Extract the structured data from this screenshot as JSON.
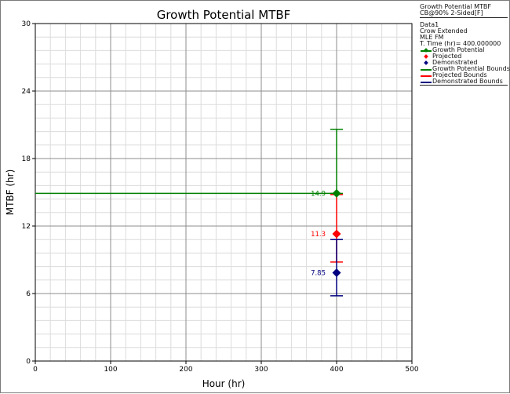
{
  "chart_data": {
    "type": "scatter",
    "title": "Growth Potential MTBF",
    "xlabel": "Hour (hr)",
    "ylabel": "MTBF (hr)",
    "xlim": [
      0,
      500
    ],
    "ylim": [
      0,
      30
    ],
    "x_ticks": [
      0,
      100,
      200,
      300,
      400,
      500
    ],
    "y_ticks": [
      0,
      6,
      12,
      18,
      24,
      30
    ],
    "grid": true,
    "legend_position": "right",
    "series": [
      {
        "name": "Growth Potential",
        "color": "#008000",
        "x": 400,
        "y": 14.9,
        "label": "14.9",
        "line_from_x": 0,
        "bounds": [
          14.9,
          20.6
        ]
      },
      {
        "name": "Projected",
        "color": "#ff0000",
        "x": 400,
        "y": 11.3,
        "label": "11.3",
        "bounds": [
          8.8,
          14.8
        ]
      },
      {
        "name": "Demonstrated",
        "color": "#000080",
        "x": 400,
        "y": 7.85,
        "label": "7.85",
        "bounds": [
          5.8,
          10.8
        ]
      }
    ]
  },
  "legend": {
    "header_title": "Growth Potential MTBF",
    "header_cb": "CB@90% 2-Sided[F]",
    "data_name": "Data1",
    "model": "Crow Extended",
    "method": "MLE FM",
    "time": "T. Time (hr)= 400.000000",
    "items": [
      {
        "label": "Growth Potential",
        "color": "#008000",
        "style": "line-diamond"
      },
      {
        "label": "Projected",
        "color": "#ff0000",
        "style": "diamond"
      },
      {
        "label": "Demonstrated",
        "color": "#000080",
        "style": "diamond"
      },
      {
        "label": "Growth Potential Bounds",
        "color": "#008000",
        "style": "line"
      },
      {
        "label": "Projected Bounds",
        "color": "#ff0000",
        "style": "line"
      },
      {
        "label": "Demonstrated Bounds",
        "color": "#000080",
        "style": "line"
      }
    ]
  }
}
